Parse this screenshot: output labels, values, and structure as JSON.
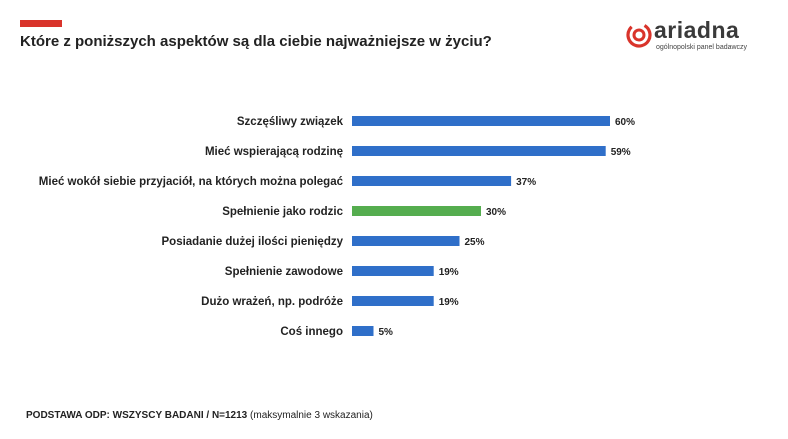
{
  "title": "Które z poniższych aspektów są dla ciebie najważniejsze w życiu?",
  "logo": {
    "name": "ariadna",
    "tagline": "ogólnopolski panel badawczy"
  },
  "colors": {
    "accent": "#d9342b",
    "bar_default": "#2f6fc9",
    "bar_highlight": "#55ad4f"
  },
  "chart_data": {
    "type": "bar",
    "orientation": "horizontal",
    "categories": [
      "Szczęśliwy związek",
      "Mieć wspierającą rodzinę",
      "Mieć wokół siebie przyjaciół, na których można polegać",
      "Spełnienie jako rodzic",
      "Posiadanie dużej ilości pieniędzy",
      "Spełnienie zawodowe",
      "Dużo wrażeń, np. podróże",
      "Coś innego"
    ],
    "values": [
      60,
      59,
      37,
      30,
      25,
      19,
      19,
      5
    ],
    "value_labels": [
      "60%",
      "59%",
      "37%",
      "30%",
      "25%",
      "19%",
      "19%",
      "5%"
    ],
    "highlight_index": 3,
    "xlim": [
      0,
      100
    ],
    "unit": "%",
    "grid": false,
    "legend": "none"
  },
  "footer": {
    "base": "PODSTAWA ODP: WSZYSCY BADANI / N=1213",
    "note": "(maksymalnie 3 wskazania)"
  }
}
